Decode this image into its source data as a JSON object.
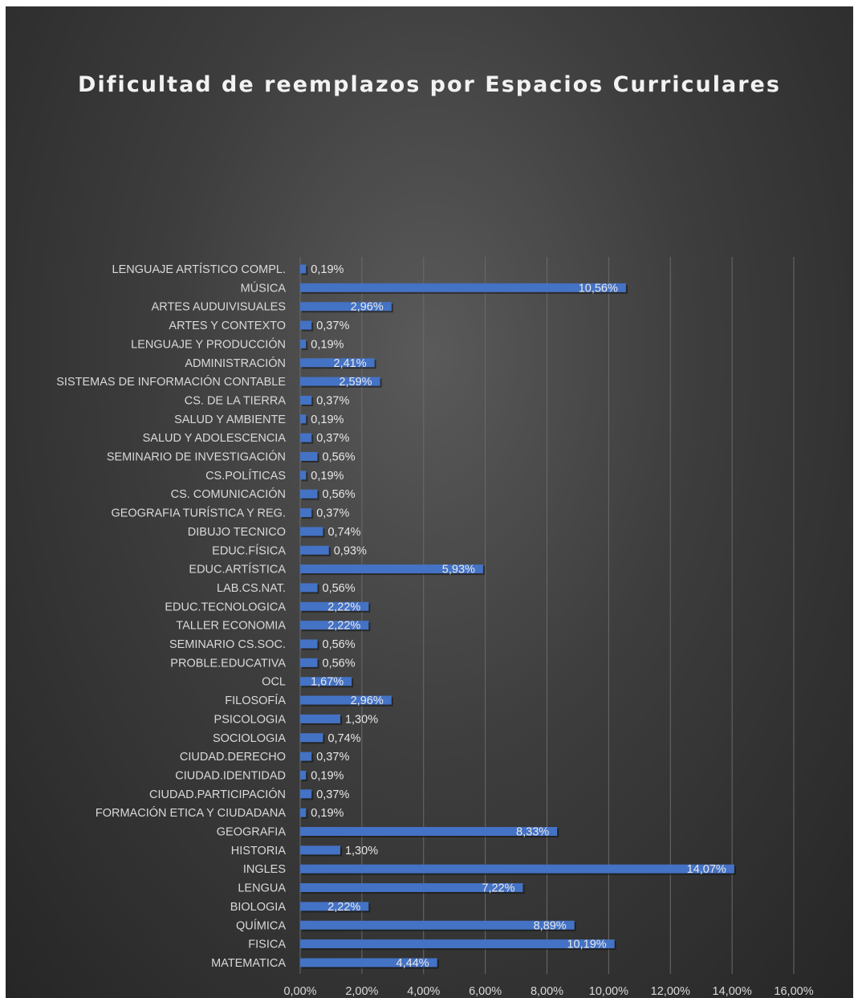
{
  "chart_data": {
    "type": "bar",
    "orientation": "horizontal",
    "title": "Dificultad de reemplazos por Espacios Curriculares",
    "xlim": [
      0,
      16
    ],
    "tick_step": 2,
    "tick_labels": [
      "0,00%",
      "2,00%",
      "4,00%",
      "6,00%",
      "8,00%",
      "10,00%",
      "12,00%",
      "14,00%",
      "16,00%"
    ],
    "grid": true,
    "legend": "none",
    "colors": {
      "bar": "#4472c4",
      "background": "#3a3a3a",
      "grid": "#6a6a6a",
      "text": "#d9d9d9"
    },
    "categories": [
      "LENGUAJE ARTÍSTICO COMPL.",
      "MÚSICA",
      "ARTES  AUDUIVISUALES",
      "ARTES Y CONTEXTO",
      "LENGUAJE Y PRODUCCIÓN",
      "ADMINISTRACIÓN",
      "SISTEMAS DE INFORMACIÓN CONTABLE",
      "CS. DE LA TIERRA",
      "SALUD Y AMBIENTE",
      "SALUD Y ADOLESCENCIA",
      "SEMINARIO DE INVESTIGACIÓN",
      "CS.POLÍTICAS",
      "CS. COMUNICACIÓN",
      "GEOGRAFIA TURÍSTICA Y REG.",
      "DIBUJO TECNICO",
      "EDUC.FÍSICA",
      "EDUC.ARTÍSTICA",
      "LAB.CS.NAT.",
      "EDUC.TECNOLOGICA",
      "TALLER ECONOMIA",
      "SEMINARIO CS.SOC.",
      "PROBLE.EDUCATIVA",
      "OCL",
      "FILOSOFÍA",
      "PSICOLOGIA",
      "SOCIOLOGIA",
      "CIUDAD.DERECHO",
      "CIUDAD.IDENTIDAD",
      "CIUDAD.PARTICIPACIÓN",
      "FORMACIÓN ETICA Y CIUDADANA",
      "GEOGRAFIA",
      "HISTORIA",
      "INGLES",
      "LENGUA",
      "BIOLOGIA",
      "QUÍMICA",
      "FISICA",
      "MATEMATICA"
    ],
    "values": [
      0.19,
      10.56,
      2.96,
      0.37,
      0.19,
      2.41,
      2.59,
      0.37,
      0.19,
      0.37,
      0.56,
      0.19,
      0.56,
      0.37,
      0.74,
      0.93,
      5.93,
      0.56,
      2.22,
      2.22,
      0.56,
      0.56,
      1.67,
      2.96,
      1.3,
      0.74,
      0.37,
      0.19,
      0.37,
      0.19,
      8.33,
      1.3,
      14.07,
      7.22,
      2.22,
      8.89,
      10.19,
      4.44
    ],
    "data_labels": [
      "0,19%",
      "10,56%",
      "2,96%",
      "0,37%",
      "0,19%",
      "2,41%",
      "2,59%",
      "0,37%",
      "0,19%",
      "0,37%",
      "0,56%",
      "0,19%",
      "0,56%",
      "0,37%",
      "0,74%",
      "0,93%",
      "5,93%",
      "0,56%",
      "2,22%",
      "2,22%",
      "0,56%",
      "0,56%",
      "1,67%",
      "2,96%",
      "1,30%",
      "0,74%",
      "0,37%",
      "0,19%",
      "0,37%",
      "0,19%",
      "8,33%",
      "1,30%",
      "14,07%",
      "7,22%",
      "2,22%",
      "8,89%",
      "10,19%",
      "4,44%"
    ]
  }
}
